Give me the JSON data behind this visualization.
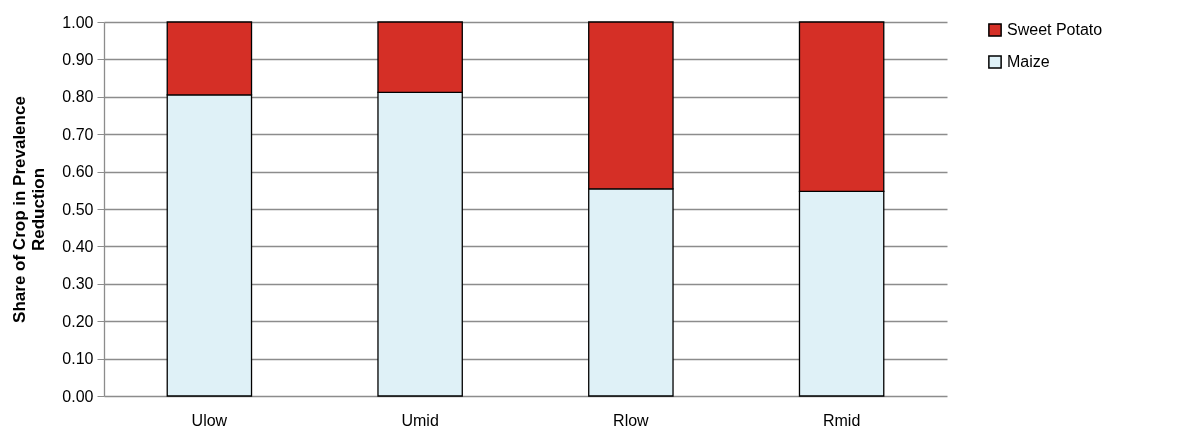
{
  "chart_data": {
    "type": "bar",
    "stacked": true,
    "ylabel": "Share of Crop in Prevalence\nReduction",
    "categories": [
      "Ulow",
      "Umid",
      "Rlow",
      "Rmid"
    ],
    "series": [
      {
        "name": "Maize",
        "color": "#dff1f7",
        "values": [
          0.805,
          0.812,
          0.554,
          0.547
        ]
      },
      {
        "name": "Sweet Potato",
        "color": "#d52f26",
        "values": [
          0.195,
          0.188,
          0.446,
          0.453
        ]
      }
    ],
    "ylim": [
      0,
      1
    ],
    "yticks": [
      {
        "value": 0,
        "label": "0.00"
      },
      {
        "value": 0.1,
        "label": "0.10"
      },
      {
        "value": 0.2,
        "label": "0.20"
      },
      {
        "value": 0.3,
        "label": "0.30"
      },
      {
        "value": 0.4,
        "label": "0.40"
      },
      {
        "value": 0.5,
        "label": "0.50"
      },
      {
        "value": 0.6,
        "label": "0.60"
      },
      {
        "value": 0.7,
        "label": "0.70"
      },
      {
        "value": 0.8,
        "label": "0.80"
      },
      {
        "value": 0.9,
        "label": "0.90"
      },
      {
        "value": 1,
        "label": "1.00"
      }
    ],
    "grid": "y",
    "legend": "right"
  }
}
